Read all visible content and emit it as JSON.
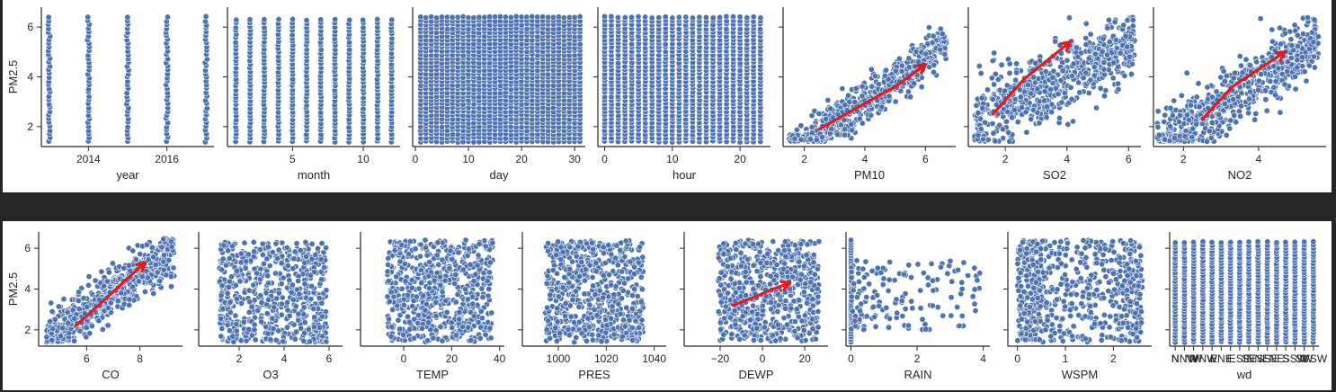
{
  "chart_data": [
    {
      "type": "scatter",
      "row": 1,
      "ylabel": "PM2.5",
      "ylim": [
        1.2,
        6.8
      ],
      "yticks": [
        2,
        4,
        6
      ],
      "subplots": [
        {
          "xlabel": "year",
          "kind": "discrete",
          "xlim": [
            2012.8,
            2017.2
          ],
          "xticks": [
            2014,
            2016
          ],
          "levels": [
            2013,
            2014,
            2015,
            2016,
            2017
          ],
          "ymin": 1.4,
          "ymax": 6.4
        },
        {
          "xlabel": "month",
          "kind": "discrete",
          "xlim": [
            0.4,
            12.6
          ],
          "xticks": [
            5,
            10
          ],
          "levels": [
            1,
            2,
            3,
            4,
            5,
            6,
            7,
            8,
            9,
            10,
            11,
            12
          ],
          "ymin": 1.4,
          "ymax": 6.3
        },
        {
          "xlabel": "day",
          "kind": "discrete",
          "xlim": [
            -0.5,
            32
          ],
          "xticks": [
            0,
            10,
            20,
            30
          ],
          "levels": [
            1,
            2,
            3,
            4,
            5,
            6,
            7,
            8,
            9,
            10,
            11,
            12,
            13,
            14,
            15,
            16,
            17,
            18,
            19,
            20,
            21,
            22,
            23,
            24,
            25,
            26,
            27,
            28,
            29,
            30,
            31
          ],
          "ymin": 1.4,
          "ymax": 6.4
        },
        {
          "xlabel": "hour",
          "kind": "discrete",
          "xlim": [
            -1,
            24.5
          ],
          "xticks": [
            0,
            10,
            20
          ],
          "levels": [
            0,
            1,
            2,
            3,
            4,
            5,
            6,
            7,
            8,
            9,
            10,
            11,
            12,
            13,
            14,
            15,
            16,
            17,
            18,
            19,
            20,
            21,
            22,
            23
          ],
          "ymin": 1.4,
          "ymax": 6.4
        },
        {
          "xlabel": "PM10",
          "kind": "correlated",
          "xlim": [
            1.3,
            7.0
          ],
          "xticks": [
            2,
            4,
            6
          ],
          "xrange": [
            1.5,
            6.7
          ],
          "slope": 0.85,
          "intercept": -0.4,
          "spread": 0.9,
          "trend": [
            [
              2.5,
              1.9
            ],
            [
              3.8,
              2.8
            ],
            [
              5.0,
              3.6
            ],
            [
              6.0,
              4.5
            ]
          ]
        },
        {
          "xlabel": "SO2",
          "kind": "correlated",
          "xlim": [
            0.8,
            6.4
          ],
          "xticks": [
            2,
            4,
            6
          ],
          "xrange": [
            1.0,
            6.2
          ],
          "slope": 0.6,
          "intercept": 1.6,
          "spread": 1.6,
          "trend": [
            [
              1.6,
              2.5
            ],
            [
              2.6,
              3.9
            ],
            [
              3.4,
              4.7
            ],
            [
              4.1,
              5.4
            ]
          ]
        },
        {
          "xlabel": "NO2",
          "kind": "correlated",
          "xlim": [
            1.2,
            5.8
          ],
          "xticks": [
            2,
            4
          ],
          "xrange": [
            1.3,
            5.6
          ],
          "slope": 1.05,
          "intercept": -0.3,
          "spread": 1.4,
          "trend": [
            [
              2.5,
              2.3
            ],
            [
              3.3,
              3.6
            ],
            [
              4.1,
              4.4
            ],
            [
              4.7,
              5.0
            ]
          ]
        }
      ]
    },
    {
      "type": "scatter",
      "row": 2,
      "ylabel": "PM2.5",
      "ylim": [
        1.2,
        6.8
      ],
      "yticks": [
        2,
        4,
        6
      ],
      "subplots": [
        {
          "xlabel": "CO",
          "kind": "correlated",
          "xlim": [
            4.2,
            9.6
          ],
          "xticks": [
            6,
            8
          ],
          "xrange": [
            4.5,
            9.3
          ],
          "slope": 0.9,
          "intercept": -2.5,
          "spread": 1.3,
          "trend": [
            [
              5.6,
              2.2
            ],
            [
              6.7,
              3.5
            ],
            [
              7.6,
              4.6
            ],
            [
              8.2,
              5.3
            ]
          ]
        },
        {
          "xlabel": "O3",
          "kind": "blob",
          "xlim": [
            0.2,
            6.6
          ],
          "xticks": [
            2,
            4,
            6
          ],
          "xrange": [
            0.5,
            6.3
          ],
          "center": [
            3.5,
            3.8
          ],
          "spread": [
            2.8,
            2.5
          ]
        },
        {
          "xlabel": "TEMP",
          "kind": "blob",
          "xlim": [
            -18,
            42
          ],
          "xticks": [
            0,
            20,
            40
          ],
          "xrange": [
            -16,
            40
          ],
          "center": [
            15,
            3.9
          ],
          "spread": [
            26,
            2.5
          ]
        },
        {
          "xlabel": "PRES",
          "kind": "blob",
          "xlim": [
            985,
            1045
          ],
          "xticks": [
            1000,
            1020,
            1040
          ],
          "xrange": [
            990,
            1042
          ],
          "center": [
            1015,
            3.9
          ],
          "spread": [
            24,
            2.5
          ]
        },
        {
          "xlabel": "DEWP",
          "kind": "blob",
          "xlim": [
            -37,
            31
          ],
          "xticks": [
            -20,
            0,
            20
          ],
          "xrange": [
            -35,
            28
          ],
          "center": [
            3,
            3.9
          ],
          "spread": [
            28,
            2.5
          ],
          "trend": [
            [
              -14,
              3.2
            ],
            [
              -4,
              3.6
            ],
            [
              5,
              4.0
            ],
            [
              13,
              4.3
            ]
          ]
        },
        {
          "xlabel": "RAIN",
          "kind": "rain",
          "xlim": [
            -0.15,
            4.2
          ],
          "xticks": [
            0,
            2,
            4
          ],
          "xrange": [
            0,
            4
          ],
          "ymin": 1.4,
          "ymax": 6.4
        },
        {
          "xlabel": "WSPM",
          "kind": "blob",
          "xlim": [
            -0.2,
            2.8
          ],
          "xticks": [
            0,
            1,
            2
          ],
          "xrange": [
            0,
            2.6
          ],
          "center": [
            1.1,
            3.9
          ],
          "spread": [
            2.3,
            2.5
          ]
        },
        {
          "xlabel": "wd",
          "kind": "discrete",
          "xlim": [
            -0.6,
            15.6
          ],
          "levels": [
            0,
            1,
            2,
            3,
            4,
            5,
            6,
            7,
            8,
            9,
            10,
            11,
            12,
            13,
            14,
            15
          ],
          "ymin": 1.4,
          "ymax": 6.3,
          "xticklabels": [
            "N",
            "NNW",
            "NW",
            "WNW",
            "W",
            "ENE",
            "E",
            "ESE",
            "SE",
            "NNE",
            "SSE",
            "NE",
            "S",
            "SSW",
            "SW",
            "WSW"
          ]
        }
      ]
    }
  ]
}
